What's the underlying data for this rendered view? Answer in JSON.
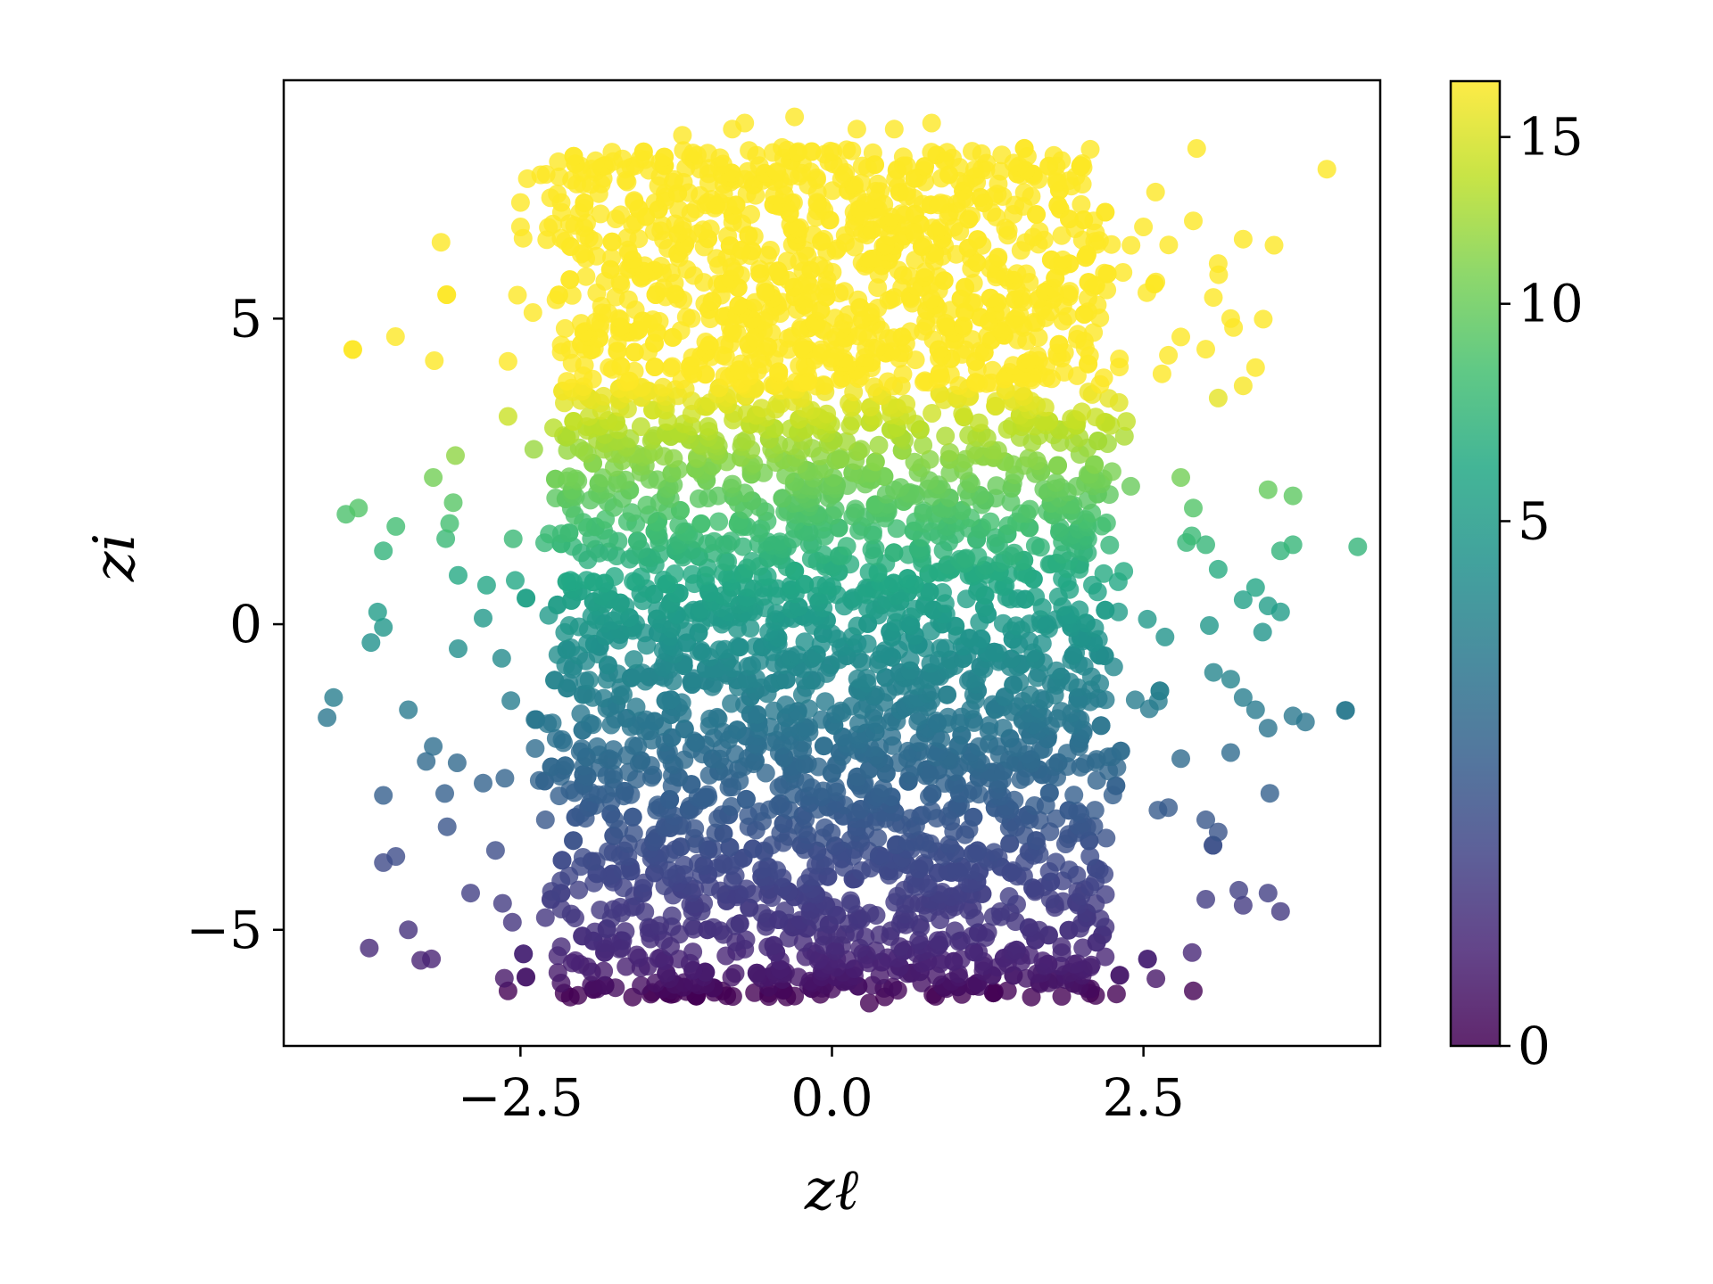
{
  "chart_data": {
    "type": "scatter",
    "title": "",
    "xlabel": "zℓ",
    "ylabel": "zi",
    "xlim": [
      -4.4,
      4.4
    ],
    "ylim": [
      -6.9,
      8.9
    ],
    "xticks": [
      -2.5,
      0.0,
      2.5
    ],
    "xtick_labels": [
      "−2.5",
      "0.0",
      "2.5"
    ],
    "yticks": [
      -5,
      0,
      5
    ],
    "ytick_labels": [
      "−5",
      "0",
      "5"
    ],
    "grid": false,
    "legend": "none",
    "colormap": "viridis",
    "alpha": 0.8,
    "colorbar": {
      "range": [
        0,
        16.9
      ],
      "ticks": [
        0,
        5,
        10,
        15
      ],
      "tick_labels": [
        "0",
        "5",
        "10",
        "15"
      ],
      "scale": "nonlinear (compressed near 0)"
    },
    "series": [
      {
        "points": [
          [
            -4.0,
            -1.2
          ],
          [
            -3.9,
            1.8
          ],
          [
            -3.8,
            1.9
          ],
          [
            -3.7,
            -0.3
          ],
          [
            -3.6,
            1.2
          ],
          [
            -3.6,
            -0.05
          ],
          [
            -3.5,
            1.6
          ],
          [
            -3.6,
            -2.8
          ],
          [
            -3.6,
            -3.9
          ],
          [
            -3.5,
            -3.8
          ],
          [
            -3.4,
            -1.4
          ],
          [
            -3.4,
            -5.0
          ],
          [
            -3.3,
            -5.5
          ],
          [
            -3.2,
            -2.0
          ],
          [
            -3.2,
            2.4
          ],
          [
            -3.1,
            1.4
          ],
          [
            -3.0,
            0.8
          ],
          [
            -3.0,
            -0.4
          ],
          [
            -2.9,
            -4.4
          ],
          [
            -2.8,
            -2.6
          ],
          [
            -2.8,
            0.1
          ],
          [
            -2.7,
            -3.7
          ],
          [
            -2.6,
            -6.0
          ],
          [
            -2.6,
            3.4
          ],
          [
            -2.6,
            4.3
          ],
          [
            -2.5,
            6.5
          ],
          [
            -2.5,
            6.9
          ],
          [
            -2.4,
            5.1
          ],
          [
            -2.3,
            -4.8
          ],
          [
            -2.2,
            -5.7
          ],
          [
            -2.1,
            -6.1
          ],
          [
            -2.0,
            7.2
          ],
          [
            -1.9,
            7.4
          ],
          [
            -1.5,
            7.6
          ],
          [
            -1.2,
            8.0
          ],
          [
            -0.8,
            8.1
          ],
          [
            -0.7,
            8.2
          ],
          [
            -0.4,
            7.8
          ],
          [
            -0.3,
            8.3
          ],
          [
            0.2,
            8.1
          ],
          [
            0.5,
            8.1
          ],
          [
            0.8,
            8.2
          ],
          [
            1.2,
            7.7
          ],
          [
            1.5,
            7.5
          ],
          [
            1.8,
            7.5
          ],
          [
            2.1,
            6.6
          ],
          [
            2.4,
            6.2
          ],
          [
            2.5,
            6.5
          ],
          [
            2.6,
            5.6
          ],
          [
            2.7,
            4.4
          ],
          [
            2.8,
            4.7
          ],
          [
            2.9,
            6.6
          ],
          [
            3.0,
            4.5
          ],
          [
            3.1,
            5.9
          ],
          [
            3.2,
            5.0
          ],
          [
            3.3,
            6.3
          ],
          [
            3.4,
            4.2
          ],
          [
            3.3,
            3.9
          ],
          [
            3.1,
            3.7
          ],
          [
            2.8,
            2.4
          ],
          [
            2.9,
            1.9
          ],
          [
            3.0,
            1.3
          ],
          [
            3.1,
            0.9
          ],
          [
            3.3,
            0.4
          ],
          [
            3.4,
            0.6
          ],
          [
            3.5,
            0.3
          ],
          [
            3.6,
            0.2
          ],
          [
            3.5,
            2.2
          ],
          [
            3.6,
            1.2
          ],
          [
            3.7,
            1.3
          ],
          [
            3.7,
            2.1
          ],
          [
            3.2,
            -0.9
          ],
          [
            3.3,
            -1.2
          ],
          [
            3.4,
            -1.4
          ],
          [
            3.5,
            -1.7
          ],
          [
            3.7,
            -1.5
          ],
          [
            3.8,
            -1.6
          ],
          [
            3.2,
            -2.1
          ],
          [
            3.1,
            -3.4
          ],
          [
            3.3,
            -4.6
          ],
          [
            3.5,
            -4.4
          ],
          [
            3.6,
            -4.7
          ],
          [
            3.0,
            -4.5
          ],
          [
            2.9,
            -6.0
          ],
          [
            2.6,
            -5.8
          ],
          [
            2.7,
            -3.0
          ],
          [
            2.8,
            -2.2
          ],
          [
            3.0,
            -3.2
          ],
          [
            -1.3,
            -0.2
          ],
          [
            0.7,
            -4.0
          ],
          [
            -0.8,
            -1.8
          ],
          [
            1.1,
            0.8
          ],
          [
            -0.5,
            0.6
          ],
          [
            0.3,
            -6.2
          ],
          [
            -1.6,
            -6.1
          ],
          [
            1.6,
            -6.1
          ],
          [
            -0.9,
            6.9
          ],
          [
            0.6,
            7.0
          ],
          [
            -1.7,
            5.6
          ],
          [
            1.9,
            5.4
          ],
          [
            -2.1,
            3.1
          ],
          [
            2.2,
            3.3
          ],
          [
            -2.2,
            -0.5
          ],
          [
            2.3,
            0.2
          ],
          [
            -2.3,
            -3.2
          ],
          [
            2.2,
            -3.5
          ],
          [
            -1.8,
            2.0
          ],
          [
            1.8,
            -1.0
          ],
          [
            -1.0,
            4.5
          ],
          [
            1.0,
            -3.0
          ]
        ]
      }
    ]
  }
}
